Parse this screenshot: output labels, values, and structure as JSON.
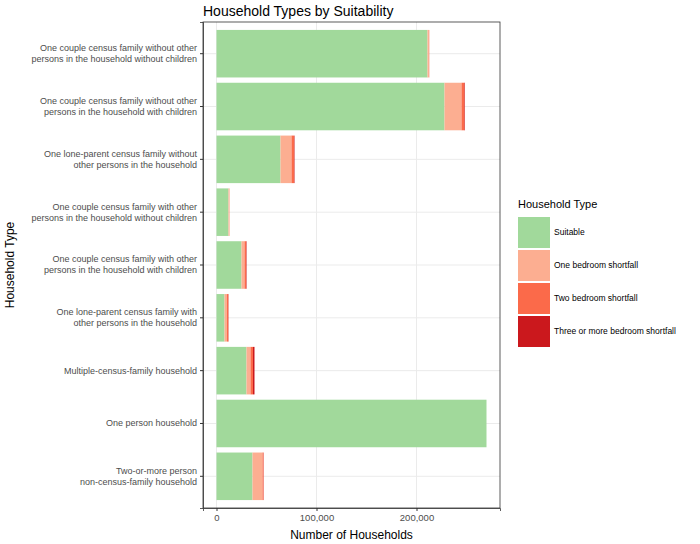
{
  "chart_data": {
    "type": "bar",
    "orientation": "horizontal",
    "stacked": true,
    "title": "Household Types by Suitability",
    "x_label": "Number of Households",
    "y_label": "Household Type",
    "legend_title": "Household Type",
    "legend": "right",
    "grid": true,
    "categories": [
      "One couple census family without other\npersons in the household without children",
      "One couple census family without other\npersons in the household with children",
      "One lone-parent census family without\nother persons in the household",
      "One couple census family with other\npersons in the household without children",
      "One couple census family with other\npersons in the household with children",
      "One lone-parent census family with\nother persons in the household",
      "Multiple-census-family household",
      "One person household",
      "Two-or-more person\nnon-census-family household"
    ],
    "series": [
      {
        "name": "Suitable",
        "color": "#a1d99b",
        "values": [
          211000,
          228000,
          64000,
          12000,
          25000,
          8000,
          30000,
          270000,
          36000
        ]
      },
      {
        "name": "One bedroom shortfall",
        "color": "#fcae91",
        "values": [
          1500,
          17000,
          11000,
          1000,
          3000,
          2500,
          4000,
          0,
          10000
        ]
      },
      {
        "name": "Two bedroom shortfall",
        "color": "#fb6a4a",
        "values": [
          200,
          3000,
          2500,
          100,
          1500,
          1200,
          2500,
          0,
          1000
        ]
      },
      {
        "name": "Three or more bedroom shortfall",
        "color": "#cb181d",
        "values": [
          50,
          500,
          500,
          0,
          500,
          300,
          1500,
          0,
          200
        ]
      }
    ],
    "xlim": [
      -13500,
      283500
    ],
    "xticks": [
      0,
      {
        "value": 100000,
        "label": "100,000"
      },
      {
        "value": 200000,
        "label": "200,000"
      }
    ]
  }
}
